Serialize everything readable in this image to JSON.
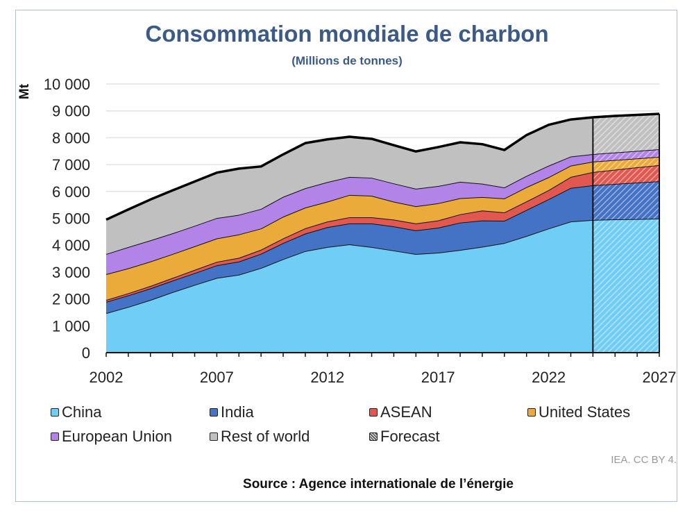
{
  "chart_data": {
    "type": "area",
    "stacked": true,
    "title": "Consommation mondiale de charbon",
    "subtitle": "(Millions de tonnes)",
    "xlabel": "",
    "ylabel": "Mt",
    "ylim": [
      0,
      10000
    ],
    "xlim": [
      2002,
      2027
    ],
    "yticks": [
      0,
      1000,
      2000,
      3000,
      4000,
      5000,
      6000,
      7000,
      8000,
      9000,
      10000
    ],
    "ytick_labels": [
      "0",
      "1 000",
      "2 000",
      "3 000",
      "4 000",
      "5 000",
      "6 000",
      "7 000",
      "8 000",
      "9 000",
      "10 000"
    ],
    "xtick_labels": [
      "2002",
      "2007",
      "2012",
      "2017",
      "2022",
      "2027"
    ],
    "grid": "horizontal",
    "legend_position": "bottom",
    "forecast_start": 2024,
    "x": [
      2002,
      2003,
      2004,
      2005,
      2006,
      2007,
      2008,
      2009,
      2010,
      2011,
      2012,
      2013,
      2014,
      2015,
      2016,
      2017,
      2018,
      2019,
      2020,
      2021,
      2022,
      2023,
      2024,
      2025,
      2026,
      2027
    ],
    "series": [
      {
        "name": "China",
        "color": "#70cdf5",
        "values": [
          1470,
          1700,
          1960,
          2250,
          2520,
          2780,
          2900,
          3150,
          3480,
          3780,
          3930,
          4030,
          3930,
          3800,
          3670,
          3720,
          3820,
          3940,
          4080,
          4340,
          4620,
          4880,
          4940,
          4960,
          4970,
          4990
        ]
      },
      {
        "name": "India",
        "color": "#4472c4",
        "values": [
          420,
          430,
          430,
          430,
          440,
          470,
          490,
          530,
          600,
          650,
          740,
          780,
          880,
          900,
          880,
          930,
          1020,
          980,
          830,
          970,
          1090,
          1250,
          1290,
          1320,
          1360,
          1390
        ]
      },
      {
        "name": "ASEAN",
        "color": "#e0584f",
        "values": [
          70,
          80,
          90,
          100,
          120,
          130,
          140,
          150,
          170,
          200,
          210,
          230,
          230,
          250,
          260,
          270,
          310,
          370,
          310,
          320,
          340,
          410,
          490,
          530,
          570,
          600
        ]
      },
      {
        "name": "United States",
        "color": "#eaab3a",
        "values": [
          960,
          930,
          910,
          890,
          880,
          870,
          870,
          790,
          810,
          770,
          740,
          830,
          800,
          670,
          640,
          640,
          600,
          500,
          520,
          530,
          480,
          420,
          390,
          360,
          330,
          310
        ]
      },
      {
        "name": "European Union",
        "color": "#b384e8",
        "values": [
          750,
          790,
          790,
          770,
          760,
          760,
          730,
          730,
          740,
          720,
          730,
          670,
          670,
          680,
          650,
          640,
          610,
          500,
          410,
          420,
          430,
          340,
          280,
          280,
          280,
          280
        ]
      },
      {
        "name": "Rest of world",
        "color": "#c0c0c0",
        "values": [
          1280,
          1400,
          1520,
          1600,
          1650,
          1690,
          1720,
          1580,
          1580,
          1680,
          1590,
          1495,
          1450,
          1420,
          1390,
          1450,
          1470,
          1470,
          1395,
          1520,
          1520,
          1380,
          1370,
          1360,
          1340,
          1320
        ]
      }
    ],
    "legend": [
      "China",
      "India",
      "ASEAN",
      "United States",
      "European Union",
      "Rest of world",
      "Forecast"
    ]
  },
  "credit": "IEA. CC BY 4.",
  "source": "Source : Agence internationale de l’énergie"
}
